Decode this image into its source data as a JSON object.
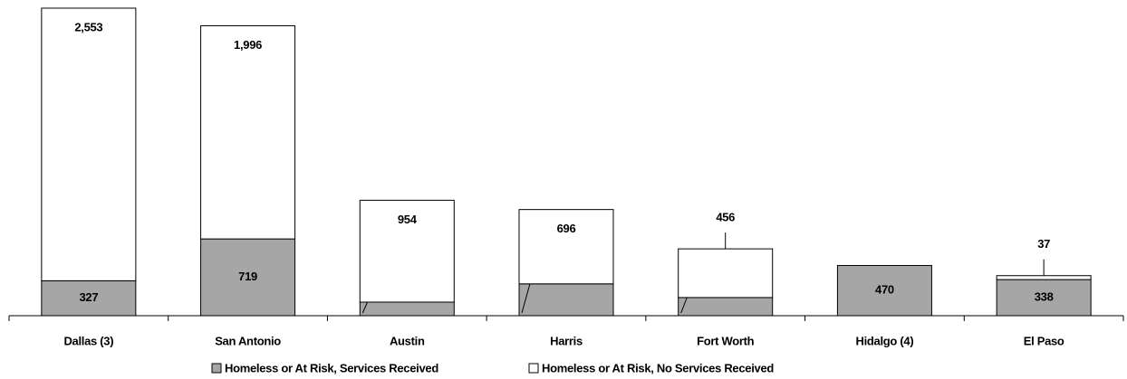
{
  "chart_data": {
    "type": "stacked-bar",
    "categories": [
      "Dallas (3)",
      "San Antonio",
      "Austin",
      "Harris",
      "Fort Worth",
      "Hidalgo (4)",
      "El Paso"
    ],
    "series": [
      {
        "name": "Homeless or At Risk, Services Received",
        "color": "#a6a6a6",
        "values": [
          327,
          719,
          127,
          298,
          170,
          470,
          338
        ]
      },
      {
        "name": "Homeless or At Risk, No Services Received",
        "color": "#ffffff",
        "values": [
          2553,
          1996,
          954,
          696,
          456,
          null,
          37
        ],
        "value_labels": [
          "2,553",
          "1,996",
          "954",
          "696",
          "456",
          null,
          "37"
        ]
      }
    ]
  }
}
